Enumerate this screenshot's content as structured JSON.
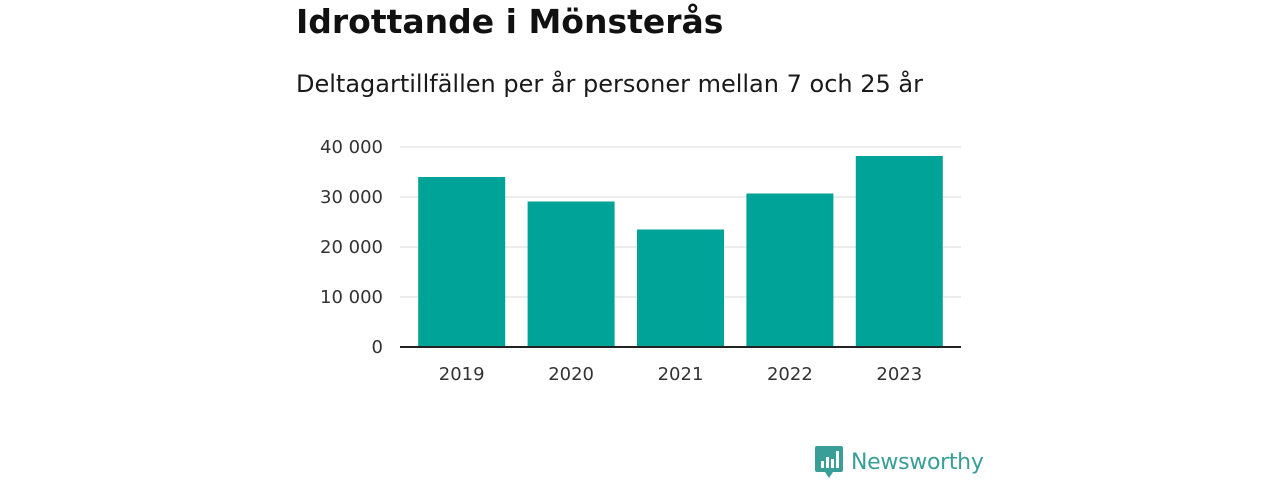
{
  "title": "Idrottande i Mönsterås",
  "subtitle": "Deltagartillfällen per år personer mellan 7 och 25 år",
  "brand": {
    "name": "Newsworthy",
    "icon": "newsworthy-logo-icon",
    "color": "#3a9e98"
  },
  "chart_data": {
    "type": "bar",
    "categories": [
      "2019",
      "2020",
      "2021",
      "2022",
      "2023"
    ],
    "values": [
      34000,
      29100,
      23500,
      30700,
      38200
    ],
    "yticks": [
      0,
      10000,
      20000,
      30000,
      40000
    ],
    "ytick_labels": [
      "0",
      "10 000",
      "20 000",
      "30 000",
      "40 000"
    ],
    "ylim": [
      0,
      40000
    ],
    "grid": true,
    "color": "#00a398",
    "xlabel": "",
    "ylabel": ""
  }
}
